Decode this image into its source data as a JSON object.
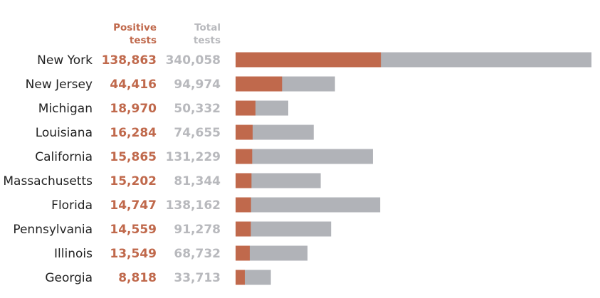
{
  "colors": {
    "positive": "#c0694c",
    "total": "#b1b3b8",
    "total_text": "#b8b9bd",
    "state_text": "#222222"
  },
  "headers": {
    "positive": [
      "Positive",
      "tests"
    ],
    "total": [
      "Total",
      "tests"
    ]
  },
  "chart_data": {
    "type": "bar",
    "orientation": "horizontal",
    "categories": [
      "New York",
      "New Jersey",
      "Michigan",
      "Louisiana",
      "California",
      "Massachusetts",
      "Florida",
      "Pennsylvania",
      "Illinois",
      "Georgia"
    ],
    "series": [
      {
        "name": "Positive tests",
        "values": [
          138863,
          44416,
          18970,
          16284,
          15865,
          15202,
          14747,
          14559,
          13549,
          8818
        ],
        "labels": [
          "138,863",
          "44,416",
          "18,970",
          "16,284",
          "15,865",
          "15,202",
          "14,747",
          "14,559",
          "13,549",
          "8,818"
        ]
      },
      {
        "name": "Total tests",
        "values": [
          340058,
          94974,
          50332,
          74655,
          131229,
          81344,
          138162,
          91278,
          68732,
          33713
        ],
        "labels": [
          "340,058",
          "94,974",
          "50,332",
          "74,655",
          "131,229",
          "81,344",
          "138,162",
          "91,278",
          "68,732",
          "33,713"
        ]
      }
    ],
    "xlim": [
      0,
      340058
    ],
    "grid": false,
    "legend": "column headers at top"
  }
}
